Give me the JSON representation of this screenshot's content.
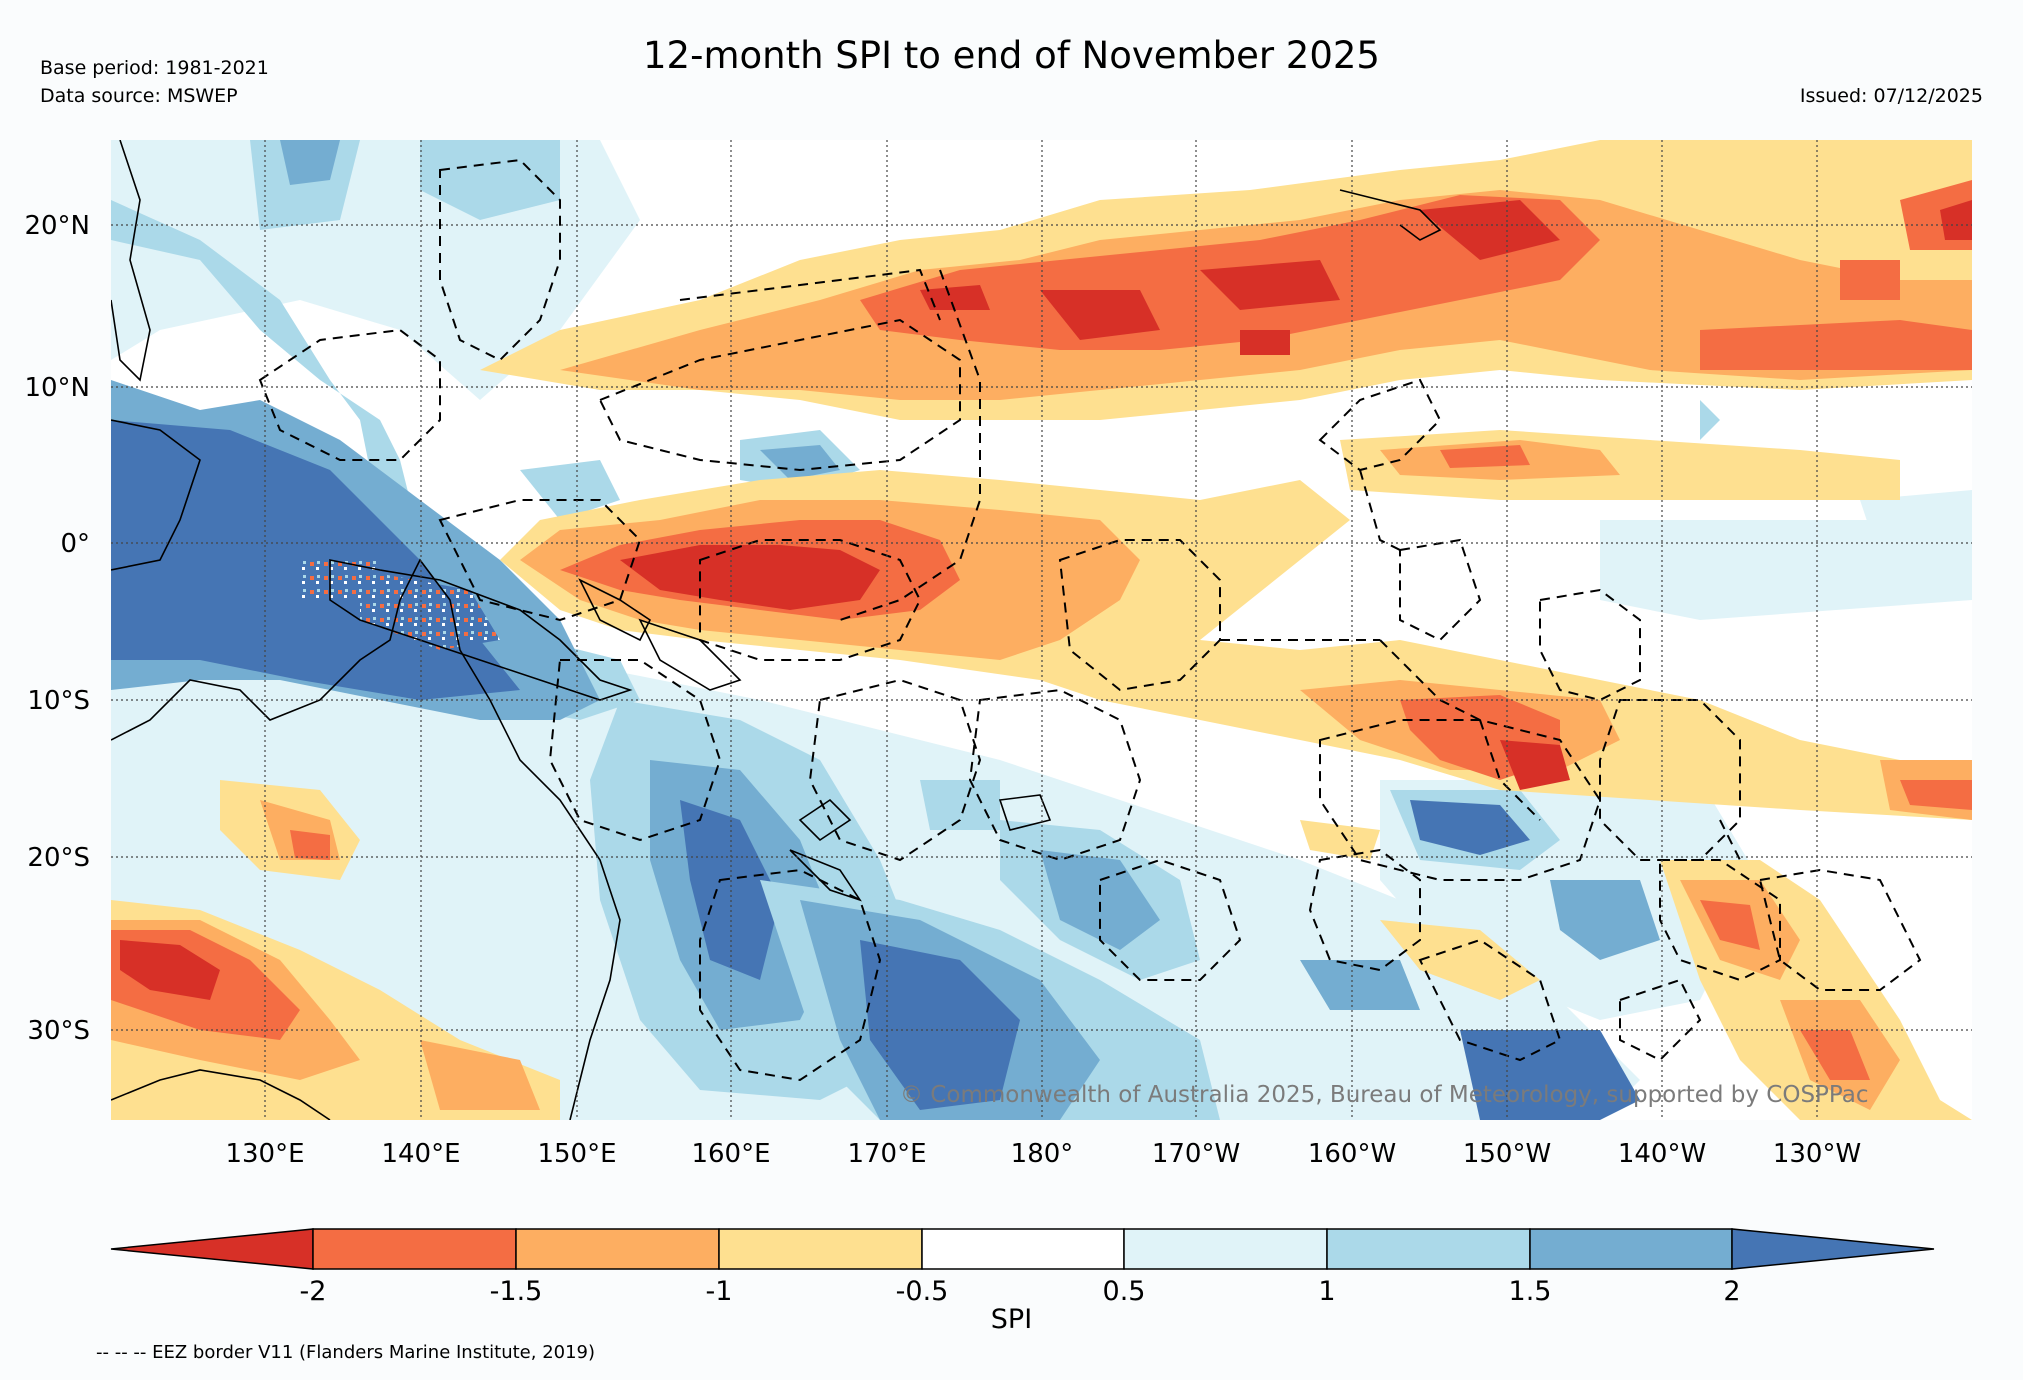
{
  "header": {
    "title": "12-month SPI to end of November 2025",
    "base_period": "Base period: 1981-2021",
    "data_source": "Data source: MSWEP",
    "issued": "Issued: 07/12/2025"
  },
  "map": {
    "lat_labels": [
      "20°N",
      "10°N",
      "0°",
      "10°S",
      "20°S",
      "30°S"
    ],
    "lon_labels": [
      "130°E",
      "140°E",
      "150°E",
      "160°E",
      "170°E",
      "180°",
      "170°W",
      "160°W",
      "150°W",
      "140°W",
      "130°W"
    ],
    "copyright": "© Commonwealth of Australia 2025, Bureau of Meteorology, supported by COSPPac"
  },
  "colorbar": {
    "label": "SPI",
    "ticks": [
      "-2",
      "-1.5",
      "-1",
      "-0.5",
      "0.5",
      "1",
      "1.5",
      "2"
    ],
    "colors": {
      "lt_minus2": "#d73027",
      "m2_m15": "#f46d43",
      "m15_m1": "#fdae61",
      "m1_m05": "#fee090",
      "m05_05": "#ffffff",
      "p05_1": "#e0f3f8",
      "p1_15": "#abd9e9",
      "p15_2": "#74add1",
      "gt2": "#4575b4"
    }
  },
  "footnote": "-- -- -- EEZ border V11 (Flanders Marine Institute, 2019)"
}
